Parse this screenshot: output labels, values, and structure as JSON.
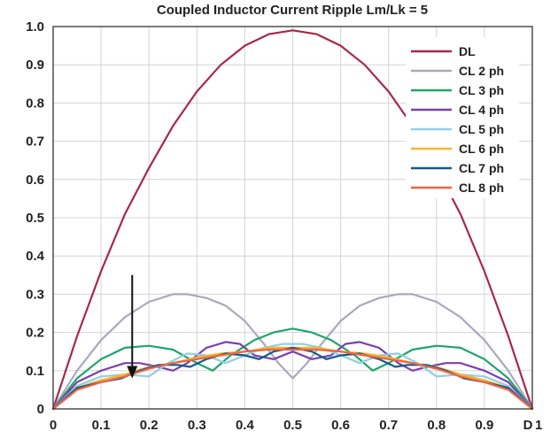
{
  "chart_data": {
    "type": "line",
    "title": "Coupled Inductor Current Ripple Lm/Lk = 5",
    "xlabel": "D",
    "ylabel": "",
    "xlim": [
      0,
      1
    ],
    "ylim": [
      0,
      1
    ],
    "x_ticks": [
      "0",
      "0.1",
      "0.2",
      "0.3",
      "0.4",
      "0.5",
      "0.6",
      "0.7",
      "0.8",
      "0.9",
      "1"
    ],
    "y_ticks": [
      "0",
      "0.1",
      "0.2",
      "0.3",
      "0.4",
      "0.5",
      "0.6",
      "0.7",
      "0.8",
      "0.9",
      "1.0"
    ],
    "grid": true,
    "legend_position": "top-right",
    "annotation": {
      "type": "arrow",
      "x": 0.165,
      "y_from": 0.35,
      "y_to": 0.08
    },
    "series": [
      {
        "name": "DL",
        "color": "#a8284a",
        "x": [
          0,
          0.05,
          0.1,
          0.15,
          0.2,
          0.25,
          0.3,
          0.35,
          0.4,
          0.45,
          0.5,
          0.55,
          0.6,
          0.65,
          0.7,
          0.75,
          0.8,
          0.85,
          0.9,
          0.95,
          1.0
        ],
        "values": [
          0,
          0.19,
          0.36,
          0.51,
          0.63,
          0.74,
          0.83,
          0.9,
          0.95,
          0.98,
          0.99,
          0.98,
          0.95,
          0.9,
          0.83,
          0.74,
          0.63,
          0.51,
          0.36,
          0.19,
          0
        ]
      },
      {
        "name": "CL 2 ph",
        "color": "#a9a9bb",
        "x": [
          0,
          0.05,
          0.1,
          0.15,
          0.2,
          0.25,
          0.28,
          0.32,
          0.36,
          0.4,
          0.44,
          0.47,
          0.5,
          0.53,
          0.56,
          0.6,
          0.64,
          0.68,
          0.72,
          0.75,
          0.8,
          0.85,
          0.9,
          0.95,
          1.0
        ],
        "values": [
          0,
          0.1,
          0.18,
          0.24,
          0.28,
          0.3,
          0.3,
          0.29,
          0.27,
          0.23,
          0.17,
          0.12,
          0.08,
          0.12,
          0.17,
          0.23,
          0.27,
          0.29,
          0.3,
          0.3,
          0.28,
          0.24,
          0.18,
          0.1,
          0
        ]
      },
      {
        "name": "CL 3 ph",
        "color": "#1fa56b",
        "x": [
          0,
          0.05,
          0.1,
          0.15,
          0.2,
          0.25,
          0.3,
          0.333,
          0.37,
          0.42,
          0.46,
          0.5,
          0.54,
          0.58,
          0.63,
          0.667,
          0.7,
          0.75,
          0.8,
          0.85,
          0.9,
          0.95,
          1.0
        ],
        "values": [
          0,
          0.08,
          0.13,
          0.16,
          0.165,
          0.155,
          0.12,
          0.1,
          0.14,
          0.18,
          0.2,
          0.21,
          0.2,
          0.18,
          0.14,
          0.1,
          0.12,
          0.155,
          0.165,
          0.16,
          0.13,
          0.08,
          0
        ]
      },
      {
        "name": "CL 4 ph",
        "color": "#7d3fae",
        "x": [
          0,
          0.05,
          0.1,
          0.15,
          0.18,
          0.22,
          0.25,
          0.28,
          0.32,
          0.36,
          0.39,
          0.42,
          0.46,
          0.5,
          0.54,
          0.58,
          0.61,
          0.64,
          0.68,
          0.72,
          0.75,
          0.78,
          0.82,
          0.85,
          0.9,
          0.95,
          1.0
        ],
        "values": [
          0,
          0.07,
          0.1,
          0.12,
          0.12,
          0.11,
          0.1,
          0.12,
          0.16,
          0.175,
          0.17,
          0.14,
          0.13,
          0.15,
          0.13,
          0.14,
          0.17,
          0.175,
          0.16,
          0.12,
          0.1,
          0.11,
          0.12,
          0.12,
          0.1,
          0.07,
          0
        ]
      },
      {
        "name": "CL 5 ph",
        "color": "#8fcfe6",
        "x": [
          0,
          0.05,
          0.1,
          0.15,
          0.2,
          0.24,
          0.28,
          0.32,
          0.36,
          0.4,
          0.44,
          0.48,
          0.5,
          0.52,
          0.56,
          0.6,
          0.64,
          0.68,
          0.72,
          0.76,
          0.8,
          0.85,
          0.9,
          0.95,
          1.0
        ],
        "values": [
          0,
          0.06,
          0.085,
          0.09,
          0.085,
          0.12,
          0.145,
          0.14,
          0.12,
          0.14,
          0.16,
          0.17,
          0.17,
          0.17,
          0.16,
          0.14,
          0.12,
          0.14,
          0.145,
          0.12,
          0.085,
          0.09,
          0.085,
          0.06,
          0
        ]
      },
      {
        "name": "CL 6 ph",
        "color": "#f2b630",
        "x": [
          0,
          0.05,
          0.1,
          0.15,
          0.2,
          0.25,
          0.3,
          0.35,
          0.4,
          0.45,
          0.5,
          0.55,
          0.6,
          0.65,
          0.7,
          0.75,
          0.8,
          0.85,
          0.9,
          0.95,
          1.0
        ],
        "values": [
          0,
          0.055,
          0.075,
          0.09,
          0.11,
          0.12,
          0.135,
          0.145,
          0.15,
          0.16,
          0.16,
          0.16,
          0.15,
          0.145,
          0.135,
          0.12,
          0.11,
          0.09,
          0.075,
          0.055,
          0
        ]
      },
      {
        "name": "CL 7 ph",
        "color": "#155a8a",
        "x": [
          0,
          0.05,
          0.1,
          0.143,
          0.18,
          0.22,
          0.26,
          0.286,
          0.32,
          0.36,
          0.4,
          0.43,
          0.46,
          0.5,
          0.54,
          0.57,
          0.6,
          0.64,
          0.68,
          0.714,
          0.74,
          0.78,
          0.82,
          0.857,
          0.9,
          0.95,
          1.0
        ],
        "values": [
          0,
          0.055,
          0.07,
          0.08,
          0.1,
          0.115,
          0.115,
          0.11,
          0.13,
          0.145,
          0.14,
          0.13,
          0.15,
          0.16,
          0.15,
          0.13,
          0.14,
          0.145,
          0.13,
          0.11,
          0.115,
          0.115,
          0.1,
          0.08,
          0.07,
          0.055,
          0
        ]
      },
      {
        "name": "CL 8 ph",
        "color": "#ec6445",
        "x": [
          0,
          0.05,
          0.1,
          0.15,
          0.2,
          0.25,
          0.3,
          0.35,
          0.4,
          0.45,
          0.5,
          0.55,
          0.6,
          0.65,
          0.7,
          0.75,
          0.8,
          0.85,
          0.9,
          0.95,
          1.0
        ],
        "values": [
          0,
          0.05,
          0.07,
          0.085,
          0.105,
          0.12,
          0.13,
          0.14,
          0.15,
          0.155,
          0.155,
          0.155,
          0.15,
          0.14,
          0.13,
          0.12,
          0.105,
          0.085,
          0.07,
          0.05,
          0
        ]
      }
    ]
  }
}
